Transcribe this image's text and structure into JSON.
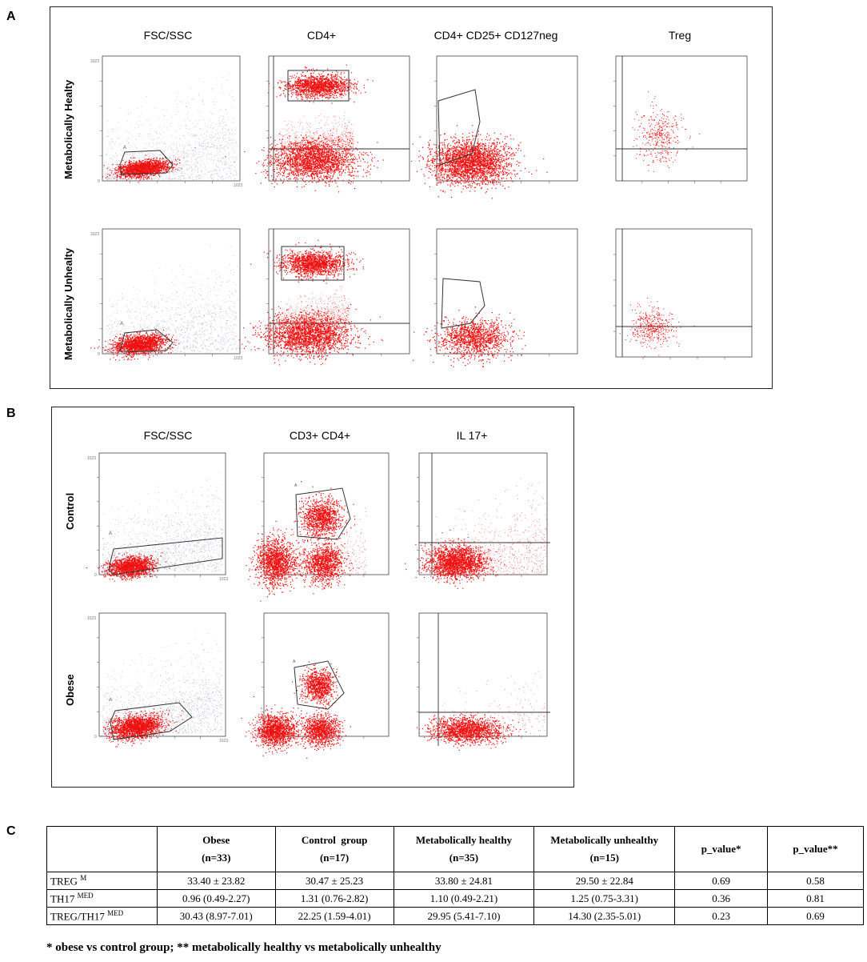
{
  "panel_a": {
    "letter": "A",
    "columns": [
      "FSC/SSC",
      "CD4+",
      "CD4+ CD25+ CD127neg",
      "Treg"
    ],
    "rows": [
      "Metabolically Healty",
      "Metabolically Unhealty"
    ]
  },
  "panel_b": {
    "letter": "B",
    "columns": [
      "FSC/SSC",
      "CD3+ CD4+",
      "IL 17+"
    ],
    "rows": [
      "Control",
      "Obese"
    ]
  },
  "axis_text": {
    "max": "1023",
    "zero": "0"
  },
  "colors": {
    "event": "#ee1111",
    "debris": "#8a90a8",
    "gate": "#333333"
  },
  "panel_c": {
    "letter": "C",
    "headers": [
      {
        "name": "",
        "n": ""
      },
      {
        "name": "Obese",
        "n": "(n=33)"
      },
      {
        "name": "Control  group",
        "n": "(n=17)"
      },
      {
        "name": "Metabolically healthy",
        "n": "(n=35)"
      },
      {
        "name": "Metabolically unhealthy",
        "n": "(n=15)"
      },
      {
        "name": "p_value*",
        "n": ""
      },
      {
        "name": "p_value**",
        "n": ""
      }
    ],
    "rows": [
      {
        "label": "TREG",
        "sup": "M",
        "cells": [
          "33.40 ± 23.82",
          "30.47 ± 25.23",
          "33.80 ± 24.81",
          "29.50 ± 22.84",
          "0.69",
          "0.58"
        ]
      },
      {
        "label": "TH17",
        "sup": "MED",
        "cells": [
          "0.96 (0.49-2.27)",
          "1.31 (0.76-2.82)",
          "1.10 (0.49-2.21)",
          "1.25 (0.75-3.31)",
          "0.36",
          "0.81"
        ]
      },
      {
        "label": "TREG/TH17",
        "sup": "MED",
        "cells": [
          "30.43 (8.97-7.01)",
          "22.25 (1.59-4.01)",
          "29.95 (5.41-7.10)",
          "14.30 (2.35-5.01)",
          "0.23",
          "0.69"
        ]
      }
    ],
    "footnote": "* obese vs control group; ** metabolically healthy vs metabolically unhealthy"
  }
}
